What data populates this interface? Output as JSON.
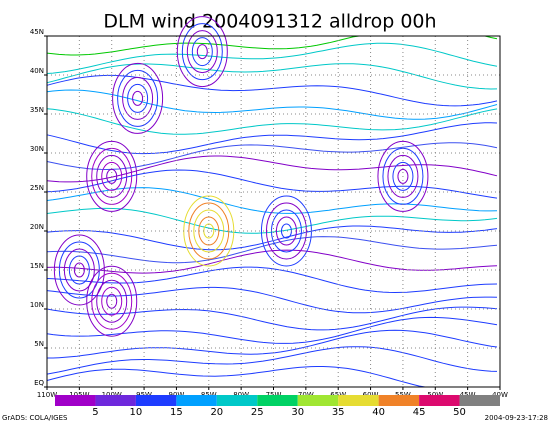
{
  "chart_data": {
    "type": "streamline-map",
    "title": "DLM wind 2004091312 alldrop 00h",
    "xlim": [
      -110,
      -40
    ],
    "ylim": [
      0,
      45
    ],
    "xticks": [
      {
        "value": -110,
        "label": "110W"
      },
      {
        "value": -105,
        "label": "105W"
      },
      {
        "value": -100,
        "label": "100W"
      },
      {
        "value": -95,
        "label": "95W"
      },
      {
        "value": -90,
        "label": "90W"
      },
      {
        "value": -85,
        "label": "85W"
      },
      {
        "value": -80,
        "label": "80W"
      },
      {
        "value": -75,
        "label": "75W"
      },
      {
        "value": -70,
        "label": "70W"
      },
      {
        "value": -65,
        "label": "65W"
      },
      {
        "value": -60,
        "label": "60W"
      },
      {
        "value": -55,
        "label": "55W"
      },
      {
        "value": -50,
        "label": "50W"
      },
      {
        "value": -45,
        "label": "45W"
      },
      {
        "value": -40,
        "label": "40W"
      }
    ],
    "yticks": [
      {
        "value": 0,
        "label": "EQ"
      },
      {
        "value": 5,
        "label": "5N"
      },
      {
        "value": 10,
        "label": "10N"
      },
      {
        "value": 15,
        "label": "15N"
      },
      {
        "value": 20,
        "label": "20N"
      },
      {
        "value": 25,
        "label": "25N"
      },
      {
        "value": 30,
        "label": "30N"
      },
      {
        "value": 35,
        "label": "35N"
      },
      {
        "value": 40,
        "label": "40N"
      },
      {
        "value": 45,
        "label": "45N"
      }
    ],
    "grid": true,
    "colorbar": {
      "labels": [
        5,
        10,
        15,
        20,
        25,
        30,
        35,
        40,
        45,
        50
      ],
      "colors": [
        "#a000c8",
        "#6e28dc",
        "#1e3cff",
        "#00a0ff",
        "#00c8c8",
        "#00d264",
        "#a0e632",
        "#e6dc32",
        "#f08228",
        "#dc0a6e",
        "#808080"
      ]
    },
    "footer_left": "GrADS: COLA/IGES",
    "footer_right": "2004-09-23-17:28"
  }
}
